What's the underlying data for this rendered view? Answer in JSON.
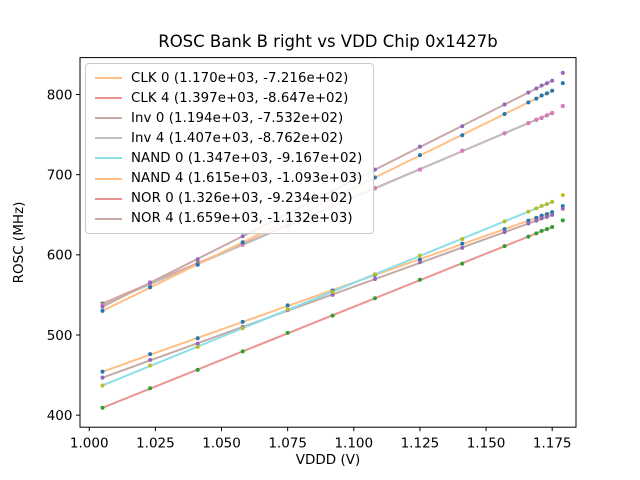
{
  "figure": {
    "title": "ROSC Bank B right vs VDD Chip 0x1427b",
    "xlabel": "VDDD (V)",
    "ylabel": "ROSC (MHz)"
  },
  "colors": {
    "background": "#ffffff",
    "axes": "#000000",
    "legend_border": "#cccccc"
  },
  "chart_data": {
    "type": "scatter",
    "title": "ROSC Bank B right vs VDD Chip 0x1427b",
    "xlabel": "VDDD (V)",
    "ylabel": "ROSC (MHz)",
    "grid": false,
    "legend_position": "upper left",
    "xlim": [
      0.9965,
      1.184
    ],
    "ylim": [
      385,
      846
    ],
    "xtick_values": [
      1.0,
      1.025,
      1.05,
      1.075,
      1.1,
      1.125,
      1.15,
      1.175
    ],
    "xtick_labels": [
      "1.000",
      "1.025",
      "1.050",
      "1.075",
      "1.100",
      "1.125",
      "1.150",
      "1.175"
    ],
    "ytick_values": [
      400,
      500,
      600,
      700,
      800
    ],
    "ytick_labels": [
      "400",
      "500",
      "600",
      "700",
      "800"
    ],
    "fit_line_x_span": [
      1.005,
      1.175
    ],
    "x": [
      1.005,
      1.023,
      1.041,
      1.058,
      1.075,
      1.092,
      1.108,
      1.125,
      1.141,
      1.157,
      1.166,
      1.169,
      1.171,
      1.173,
      1.175,
      1.179
    ],
    "series": [
      {
        "id": "clk-0",
        "name": "CLK 0",
        "legend_label": "CLK 0 (1.170e+03, -7.216e+02)",
        "slope": 1170.0,
        "intercept": -721.6,
        "line_color": "#ffbf86",
        "point_color": "#1f77b4",
        "y": [
          454.3,
          476.2,
          495.9,
          516.3,
          537.0,
          555.5,
          574.8,
          594.0,
          613.9,
          632.1,
          642.6,
          646.1,
          648.9,
          650.8,
          653.2,
          660.8
        ]
      },
      {
        "id": "clk-4",
        "name": "CLK 4",
        "legend_label": "CLK 4 (1.397e+03, -8.647e+02)",
        "slope": 1397.0,
        "intercept": -864.7,
        "line_color": "#eb9393",
        "point_color": "#2ca02c",
        "y": [
          539.3,
          563.6,
          590.3,
          613.3,
          636.5,
          661.5,
          683.2,
          706.3,
          729.9,
          751.6,
          764.2,
          768.4,
          770.7,
          774.0,
          776.8,
          785.4
        ]
      },
      {
        "id": "inv-0",
        "name": "Inv 0",
        "legend_label": "Inv 0 (1.194e+03, -7.532e+02)",
        "slope": 1194.0,
        "intercept": -753.2,
        "line_color": "#c5aaa5",
        "point_color": "#9467bd",
        "y": [
          446.8,
          468.9,
          489.3,
          510.1,
          531.0,
          550.0,
          569.8,
          590.7,
          608.7,
          628.3,
          639.0,
          642.6,
          645.5,
          647.4,
          649.8,
          657.5
        ]
      },
      {
        "id": "inv-4",
        "name": "Inv 4",
        "legend_label": "Inv 4 (1.407e+03, -8.762e+02)",
        "slope": 1407.0,
        "intercept": -876.2,
        "line_color": "#bfbfbf",
        "point_color": "#e377c2",
        "y": [
          537.8,
          562.7,
          589.1,
          612.4,
          635.8,
          660.7,
          682.8,
          706.2,
          729.7,
          751.7,
          764.4,
          768.6,
          771.0,
          774.2,
          777.0,
          785.7
        ]
      },
      {
        "id": "nand-0",
        "name": "NAND 0",
        "legend_label": "NAND 0 (1.347e+03, -9.167e+02)",
        "slope": 1347.0,
        "intercept": -916.7,
        "line_color": "#8bdfe7",
        "point_color": "#bcbd22",
        "y": [
          437.0,
          461.9,
          485.0,
          508.4,
          531.9,
          553.7,
          575.8,
          599.2,
          619.8,
          641.8,
          653.9,
          657.9,
          661.1,
          663.3,
          666.0,
          674.4
        ]
      },
      {
        "id": "nand-4",
        "name": "NAND 4",
        "legend_label": "NAND 4 (1.615e+03, -1.093e+03)",
        "slope": 1615.0,
        "intercept": -1093.0,
        "line_color": "#ffbf86",
        "point_color": "#1f77b4",
        "y": [
          530.1,
          559.6,
          587.7,
          615.7,
          643.7,
          670.1,
          696.4,
          724.4,
          749.2,
          775.6,
          790.1,
          794.9,
          798.7,
          801.4,
          804.6,
          814.1
        ]
      },
      {
        "id": "nor-0",
        "name": "NOR 0",
        "legend_label": "NOR 0 (1.326e+03, -9.234e+02)",
        "slope": 1326.0,
        "intercept": -923.4,
        "line_color": "#eb9393",
        "point_color": "#2ca02c",
        "y": [
          409.2,
          433.6,
          456.5,
          479.5,
          502.6,
          524.1,
          545.8,
          568.9,
          589.1,
          610.8,
          622.7,
          626.7,
          629.8,
          632.0,
          634.7,
          643.0
        ]
      },
      {
        "id": "nor-4",
        "name": "NOR 4",
        "legend_label": "NOR 4 (1.659e+03, -1.132e+03)",
        "slope": 1659.0,
        "intercept": -1132.0,
        "line_color": "#c5aaa5",
        "point_color": "#9467bd",
        "y": [
          535.3,
          565.7,
          594.5,
          623.2,
          651.9,
          679.1,
          706.2,
          734.9,
          760.4,
          787.5,
          802.4,
          807.4,
          811.2,
          814.0,
          817.3,
          827.0
        ]
      }
    ]
  }
}
